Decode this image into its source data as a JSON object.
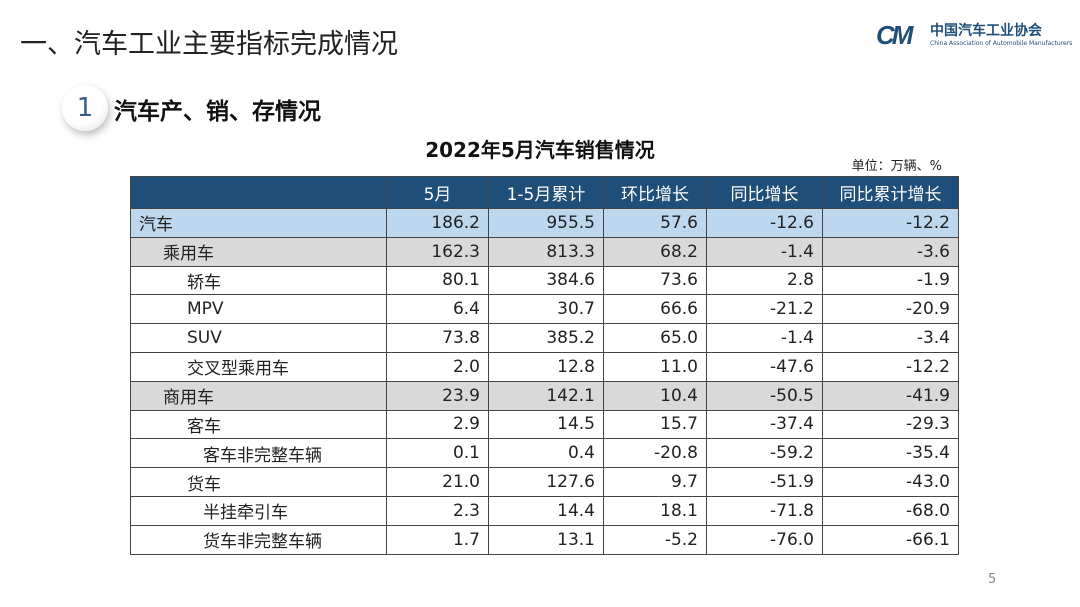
{
  "page_title": "一、汽车工业主要指标完成情况",
  "logo": {
    "cn": "中国汽车工业协会",
    "en": "China Association of Automobile Manufacturers",
    "mark": "CM"
  },
  "section": {
    "number": "1",
    "title": "汽车产、销、存情况"
  },
  "table": {
    "title": "2022年5月汽车销售情况",
    "unit": "单位：万辆、%",
    "headers": [
      "",
      "5月",
      "1-5月累计",
      "环比增长",
      "同比增长",
      "同比累计增长"
    ],
    "rows": [
      {
        "label": "汽车",
        "level": 0,
        "values": [
          "186.2",
          "955.5",
          "57.6",
          "-12.6",
          "-12.2"
        ]
      },
      {
        "label": "乘用车",
        "level": 1,
        "values": [
          "162.3",
          "813.3",
          "68.2",
          "-1.4",
          "-3.6"
        ]
      },
      {
        "label": "轿车",
        "level": 2,
        "values": [
          "80.1",
          "384.6",
          "73.6",
          "2.8",
          "-1.9"
        ]
      },
      {
        "label": "MPV",
        "level": 2,
        "values": [
          "6.4",
          "30.7",
          "66.6",
          "-21.2",
          "-20.9"
        ]
      },
      {
        "label": "SUV",
        "level": 2,
        "values": [
          "73.8",
          "385.2",
          "65.0",
          "-1.4",
          "-3.4"
        ]
      },
      {
        "label": "交叉型乘用车",
        "level": 2,
        "values": [
          "2.0",
          "12.8",
          "11.0",
          "-47.6",
          "-12.2"
        ]
      },
      {
        "label": "商用车",
        "level": 1,
        "values": [
          "23.9",
          "142.1",
          "10.4",
          "-50.5",
          "-41.9"
        ]
      },
      {
        "label": "客车",
        "level": 2,
        "values": [
          "2.9",
          "14.5",
          "15.7",
          "-37.4",
          "-29.3"
        ]
      },
      {
        "label": "客车非完整车辆",
        "level": 3,
        "values": [
          "0.1",
          "0.4",
          "-20.8",
          "-59.2",
          "-35.4"
        ]
      },
      {
        "label": "货车",
        "level": 2,
        "values": [
          "21.0",
          "127.6",
          "9.7",
          "-51.9",
          "-43.0"
        ]
      },
      {
        "label": "半挂牵引车",
        "level": 3,
        "values": [
          "2.3",
          "14.4",
          "18.1",
          "-71.8",
          "-68.0"
        ]
      },
      {
        "label": "货车非完整车辆",
        "level": 3,
        "values": [
          "1.7",
          "13.1",
          "-5.2",
          "-76.0",
          "-66.1"
        ]
      }
    ]
  },
  "page_number": "5",
  "colors": {
    "header": "#1f4e79",
    "total_row": "#bdd7ee",
    "category_row": "#d9d9d9"
  }
}
